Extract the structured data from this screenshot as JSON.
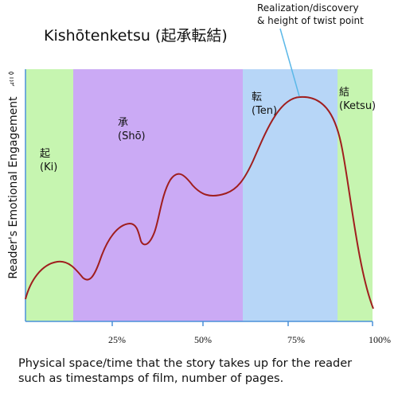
{
  "title": "Kishōtenketsu (起承転結)",
  "callout": {
    "line1": "Realization/discovery",
    "line2": "& height of twist point"
  },
  "y_axis_label": "Reader's Emotional Engagement",
  "x_ticks": [
    "25%",
    "50%",
    "75%",
    "100%"
  ],
  "caption": {
    "line1": "Physical space/time that the story takes up for the reader",
    "line2": "such as timestamps of film, number of pages."
  },
  "phases": [
    {
      "kanji": "起",
      "romaji": "(Ki)",
      "color": "#c6f5b0"
    },
    {
      "kanji": "承",
      "romaji": "(Shō)",
      "color": "#cbaaf5"
    },
    {
      "kanji": "転",
      "romaji": "(Ten)",
      "color": "#b7d6f7"
    },
    {
      "kanji": "結",
      "romaji": "(Ketsu)",
      "color": "#c6f5b0"
    }
  ],
  "colors": {
    "curve": "#a01e1e",
    "axis": "#4a90d9",
    "callout_line": "#5bb8e8"
  }
}
